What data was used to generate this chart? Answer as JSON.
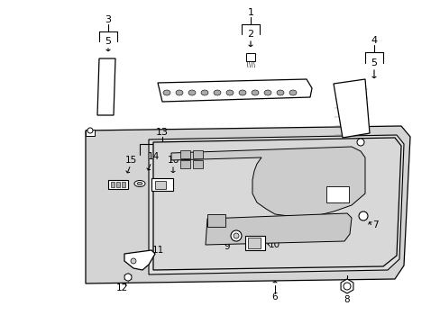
{
  "background_color": "#ffffff",
  "line_color": "#000000",
  "part_fill": "#d4d4d4",
  "part_stroke": "#000000",
  "label_color": "#000000",
  "fig_width": 4.89,
  "fig_height": 3.6,
  "dpi": 100
}
